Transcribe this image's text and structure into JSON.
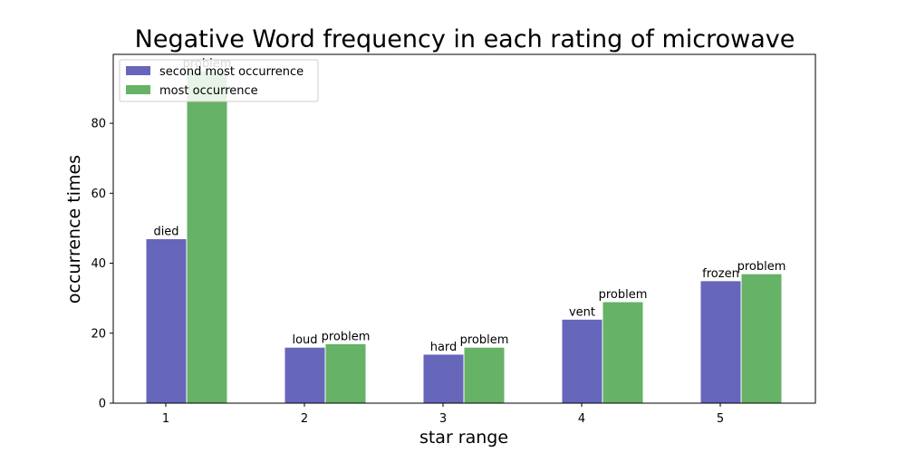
{
  "chart_data": {
    "type": "bar",
    "title": "Negative Word frequency in each rating of microwave",
    "xlabel": "star range",
    "ylabel": "occurrence times",
    "categories": [
      "1",
      "2",
      "3",
      "4",
      "5"
    ],
    "ylim": [
      0,
      99.7
    ],
    "yticks": [
      0,
      20,
      40,
      60,
      80
    ],
    "series": [
      {
        "name": "second most occurrence",
        "color": "#6666bb",
        "values": [
          47,
          16,
          14,
          24,
          35
        ],
        "labels": [
          "died",
          "loud",
          "hard",
          "vent",
          "frozen"
        ]
      },
      {
        "name": "most occurrence",
        "color": "#66b266",
        "values": [
          95,
          17,
          16,
          29,
          37
        ],
        "labels": [
          "problem",
          "problem",
          "problem",
          "problem",
          "problem"
        ]
      }
    ],
    "legend_position": "top-left",
    "grid": false
  }
}
